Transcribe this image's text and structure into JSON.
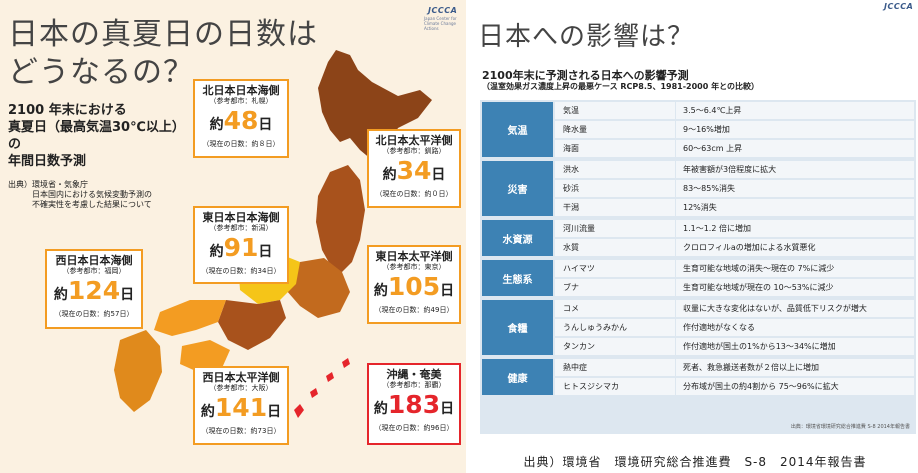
{
  "left_panel": {
    "logo": "JCCCA",
    "logo_sub": "Japan Center for Climate Change Actions",
    "title": "日本の真夏日の日数はどうなるの？",
    "subtitle": "2100 年末における\n真夏日（最高気温30℃以上）の\n年間日数予測",
    "source": "出典）環境省・気象庁\n　　　日本国内における気候変動予測の\n　　　不確実性を考慮した結果について",
    "regions": [
      {
        "name": "北日本日本海側",
        "ref": "（参考都市：札幌）",
        "prefix": "約",
        "days": "48",
        "suffix": "日",
        "current": "（現在の日数：約８日）",
        "color": "#f39c22"
      },
      {
        "name": "北日本太平洋側",
        "ref": "（参考都市：釧路）",
        "prefix": "約",
        "days": "34",
        "suffix": "日",
        "current": "（現在の日数：約０日）",
        "color": "#f39c22"
      },
      {
        "name": "東日本日本海側",
        "ref": "（参考都市：新潟）",
        "prefix": "約",
        "days": "91",
        "suffix": "日",
        "current": "（現在の日数：約34日）",
        "color": "#f39c22"
      },
      {
        "name": "西日本日本海側",
        "ref": "（参考都市：福岡）",
        "prefix": "約",
        "days": "124",
        "suffix": "日",
        "current": "（現在の日数：約57日）",
        "color": "#f39c22"
      },
      {
        "name": "東日本太平洋側",
        "ref": "（参考都市：東京）",
        "prefix": "約",
        "days": "105",
        "suffix": "日",
        "current": "（現在の日数：約49日）",
        "color": "#f39c22"
      },
      {
        "name": "西日本太平洋側",
        "ref": "（参考都市：大阪）",
        "prefix": "約",
        "days": "141",
        "suffix": "日",
        "current": "（現在の日数：約73日）",
        "color": "#f39c22"
      },
      {
        "name": "沖縄・奄美",
        "ref": "（参考都市：那覇）",
        "prefix": "約",
        "days": "183",
        "suffix": "日",
        "current": "（現在の日数：約96日）",
        "color": "#e5252b"
      }
    ]
  },
  "right_panel": {
    "logo": "JCCCA",
    "title": "日本への影響は？",
    "heading": "2100年末に予測される日本への影響予測",
    "subheading": "（温室効果ガス濃度上昇の最悪ケース RCP8.5、1981-2000 年との比較）",
    "categories": [
      {
        "name": "気温",
        "rows": [
          {
            "item": "気温",
            "effect": "3.5〜6.4℃上昇"
          },
          {
            "item": "降水量",
            "effect": "9〜16%増加"
          },
          {
            "item": "海面",
            "effect": "60〜63cm 上昇"
          }
        ]
      },
      {
        "name": "災害",
        "rows": [
          {
            "item": "洪水",
            "effect": "年被害額が3倍程度に拡大"
          },
          {
            "item": "砂浜",
            "effect": "83〜85%消失"
          },
          {
            "item": "干潟",
            "effect": "12%消失"
          }
        ]
      },
      {
        "name": "水資源",
        "rows": [
          {
            "item": "河川流量",
            "effect": "1.1〜1.2 倍に増加"
          },
          {
            "item": "水質",
            "effect": "クロロフィルaの増加による水質悪化"
          }
        ]
      },
      {
        "name": "生態系",
        "rows": [
          {
            "item": "ハイマツ",
            "effect": "生育可能な地域の消失〜現在の 7%に減少"
          },
          {
            "item": "ブナ",
            "effect": "生育可能な地域が現在の 10〜53%に減少"
          }
        ]
      },
      {
        "name": "食糧",
        "rows": [
          {
            "item": "コメ",
            "effect": "収量に大きな変化はないが、品質低下リスクが増大"
          },
          {
            "item": "うんしゅうみかん",
            "effect": "作付適地がなくなる"
          },
          {
            "item": "タンカン",
            "effect": "作付適地が国土の1%から13〜34%に増加"
          }
        ]
      },
      {
        "name": "健康",
        "rows": [
          {
            "item": "熱中症",
            "effect": "死者、救急搬送者数が２倍以上に増加"
          },
          {
            "item": "ヒトスジシマカ",
            "effect": "分布域が国土の約4割から 75〜96%に拡大"
          }
        ]
      }
    ],
    "table_note": "出典：環境省環境研究総合推進費 S-8 2014年報告書",
    "footer": "出典）環境省　環境研究総合推進費　S-8　2014年報告書"
  }
}
